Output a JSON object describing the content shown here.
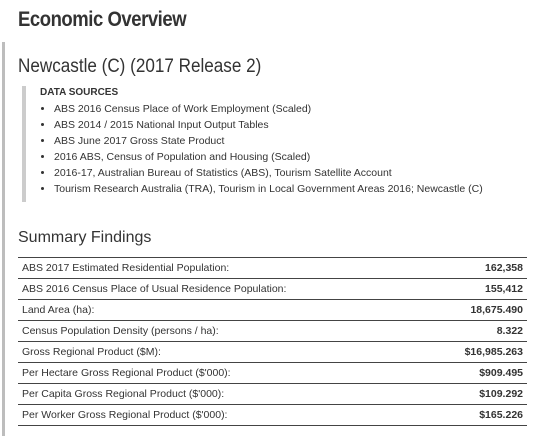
{
  "header": {
    "title": "Economic Overview",
    "subtitle": "Newcastle (C) (2017 Release 2)"
  },
  "sources": {
    "heading": "DATA SOURCES",
    "items": [
      "ABS 2016 Census Place of Work Employment (Scaled)",
      "ABS 2014 / 2015 National Input Output Tables",
      "ABS June 2017 Gross State Product",
      "2016 ABS, Census of Population and Housing (Scaled)",
      "2016-17, Australian Bureau of Statistics (ABS), Tourism Satellite Account",
      "Tourism Research Australia (TRA), Tourism in Local Government Areas 2016; Newcastle (C)"
    ]
  },
  "summary": {
    "heading": "Summary Findings",
    "rows": [
      [
        "ABS 2017 Estimated Residential Population:",
        "162,358"
      ],
      [
        "ABS 2016 Census Place of Usual Residence Population:",
        "155,412"
      ],
      [
        "Land Area (ha):",
        "18,675.490"
      ],
      [
        "Census Population Density (persons / ha):",
        "8.322"
      ],
      [
        "Gross Regional Product ($M):",
        "$16,985.263"
      ],
      [
        "Per Hectare Gross Regional Product ($'000):",
        "$909.495"
      ],
      [
        "Per Capita Gross Regional Product ($'000):",
        "$109.292"
      ],
      [
        "Per Worker Gross Regional Product ($'000):",
        "$165.226"
      ]
    ]
  }
}
